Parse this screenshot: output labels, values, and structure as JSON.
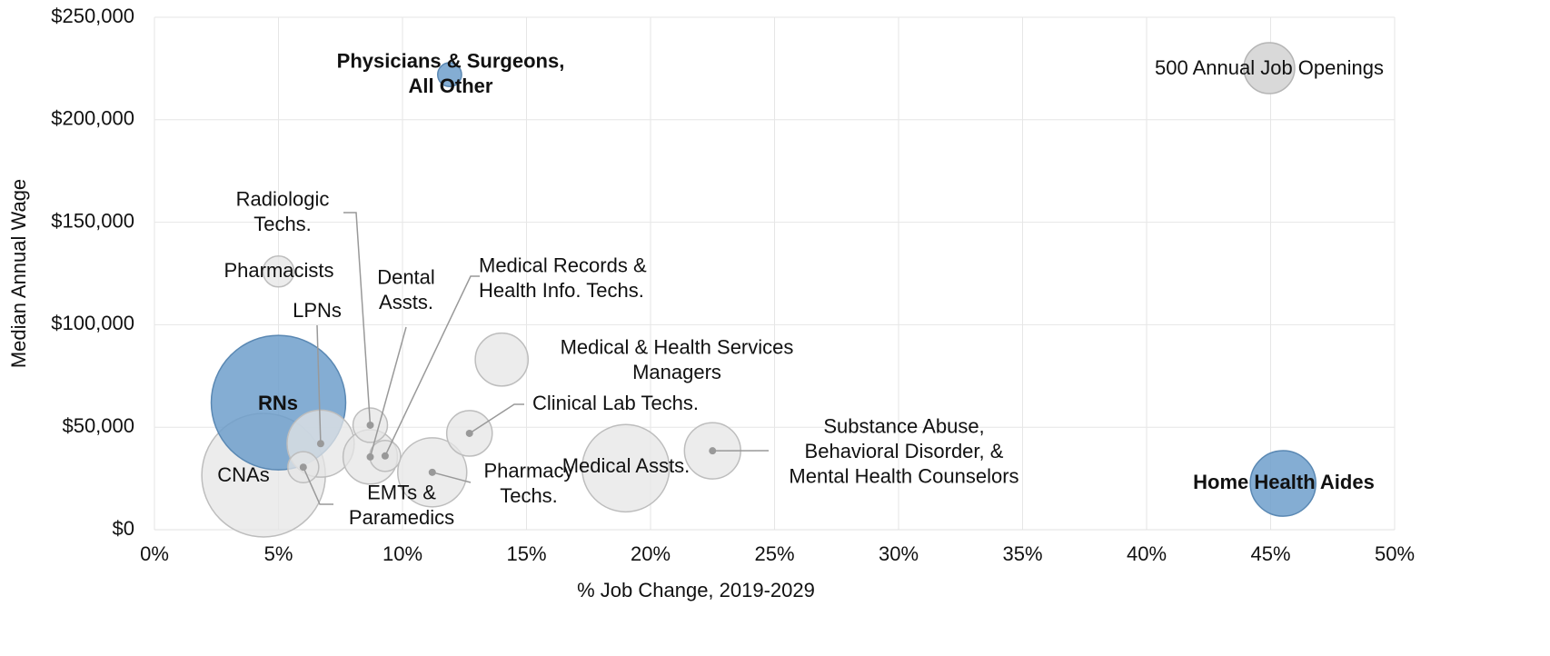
{
  "chart_data": {
    "type": "bubble",
    "x_label": "% Job Change, 2019-2029",
    "y_label": "Median Annual Wage",
    "xlim": [
      0,
      50
    ],
    "ylim": [
      0,
      250000
    ],
    "xticks": [
      {
        "value": 0,
        "label": "0%"
      },
      {
        "value": 5,
        "label": "5%"
      },
      {
        "value": 10,
        "label": "10%"
      },
      {
        "value": 15,
        "label": "15%"
      },
      {
        "value": 20,
        "label": "20%"
      },
      {
        "value": 25,
        "label": "25%"
      },
      {
        "value": 30,
        "label": "30%"
      },
      {
        "value": 35,
        "label": "35%"
      },
      {
        "value": 40,
        "label": "40%"
      },
      {
        "value": 45,
        "label": "45%"
      },
      {
        "value": 50,
        "label": "50%"
      }
    ],
    "yticks": [
      {
        "value": 0,
        "label": "$0"
      },
      {
        "value": 50000,
        "label": "$50,000"
      },
      {
        "value": 100000,
        "label": "$100,000"
      },
      {
        "value": 150000,
        "label": "$150,000"
      },
      {
        "value": 200000,
        "label": "$200,000"
      },
      {
        "value": 250000,
        "label": "$250,000"
      }
    ],
    "grid": true,
    "highlight_color": "#6f9fcb",
    "size_legend": {
      "label": "500 Annual Job Openings",
      "size": 500,
      "color": "#d9d9d9"
    },
    "points": [
      {
        "name": "CNAs",
        "x": 4.4,
        "y": 26600,
        "size": 2950,
        "color": "#e6e6e6"
      },
      {
        "name": "RNs",
        "x": 5.0,
        "y": 62000,
        "size": 3490,
        "color": "#6f9fcb"
      },
      {
        "name": "Medical Assts.",
        "x": 19.0,
        "y": 30000,
        "size": 1470,
        "color": "#e6e6e6"
      },
      {
        "name": "Pharmacy\nTechs.",
        "x": 11.2,
        "y": 28000,
        "size": 920,
        "color": "#e6e6e6"
      },
      {
        "name": "LPNs",
        "x": 6.7,
        "y": 42000,
        "size": 870,
        "color": "#e6e6e6"
      },
      {
        "name": "Home Health Aides",
        "x": 45.5,
        "y": 22600,
        "size": 830,
        "color": "#6f9fcb"
      },
      {
        "name": "Substance Abuse,\nBehavioral Disorder, &\nMental Health Counselors",
        "x": 22.5,
        "y": 38500,
        "size": 610,
        "color": "#e6e6e6"
      },
      {
        "name": "Dental\nAssts.",
        "x": 8.7,
        "y": 35500,
        "size": 570,
        "color": "#e6e6e6"
      },
      {
        "name": "Medical & Health Services\nManagers",
        "x": 14.0,
        "y": 83000,
        "size": 540,
        "color": "#e6e6e6"
      },
      {
        "name": "Clinical Lab Techs.",
        "x": 12.7,
        "y": 47000,
        "size": 400,
        "color": "#e6e6e6"
      },
      {
        "name": "Radiologic\nTechs.",
        "x": 8.7,
        "y": 51000,
        "size": 230,
        "color": "#e6e6e6"
      },
      {
        "name": "Pharmacists",
        "x": 5.0,
        "y": 126000,
        "size": 185,
        "color": "#e6e6e6"
      },
      {
        "name": "Medical Records &\nHealth Info. Techs.",
        "x": 9.3,
        "y": 36000,
        "size": 185,
        "color": "#e6e6e6"
      },
      {
        "name": "EMTs &\nParamedics",
        "x": 6.0,
        "y": 30500,
        "size": 185,
        "color": "#e6e6e6"
      },
      {
        "name": "Physicians & Surgeons,\nAll Other",
        "x": 11.9,
        "y": 222000,
        "size": 110,
        "color": "#6f9fcb"
      }
    ]
  }
}
